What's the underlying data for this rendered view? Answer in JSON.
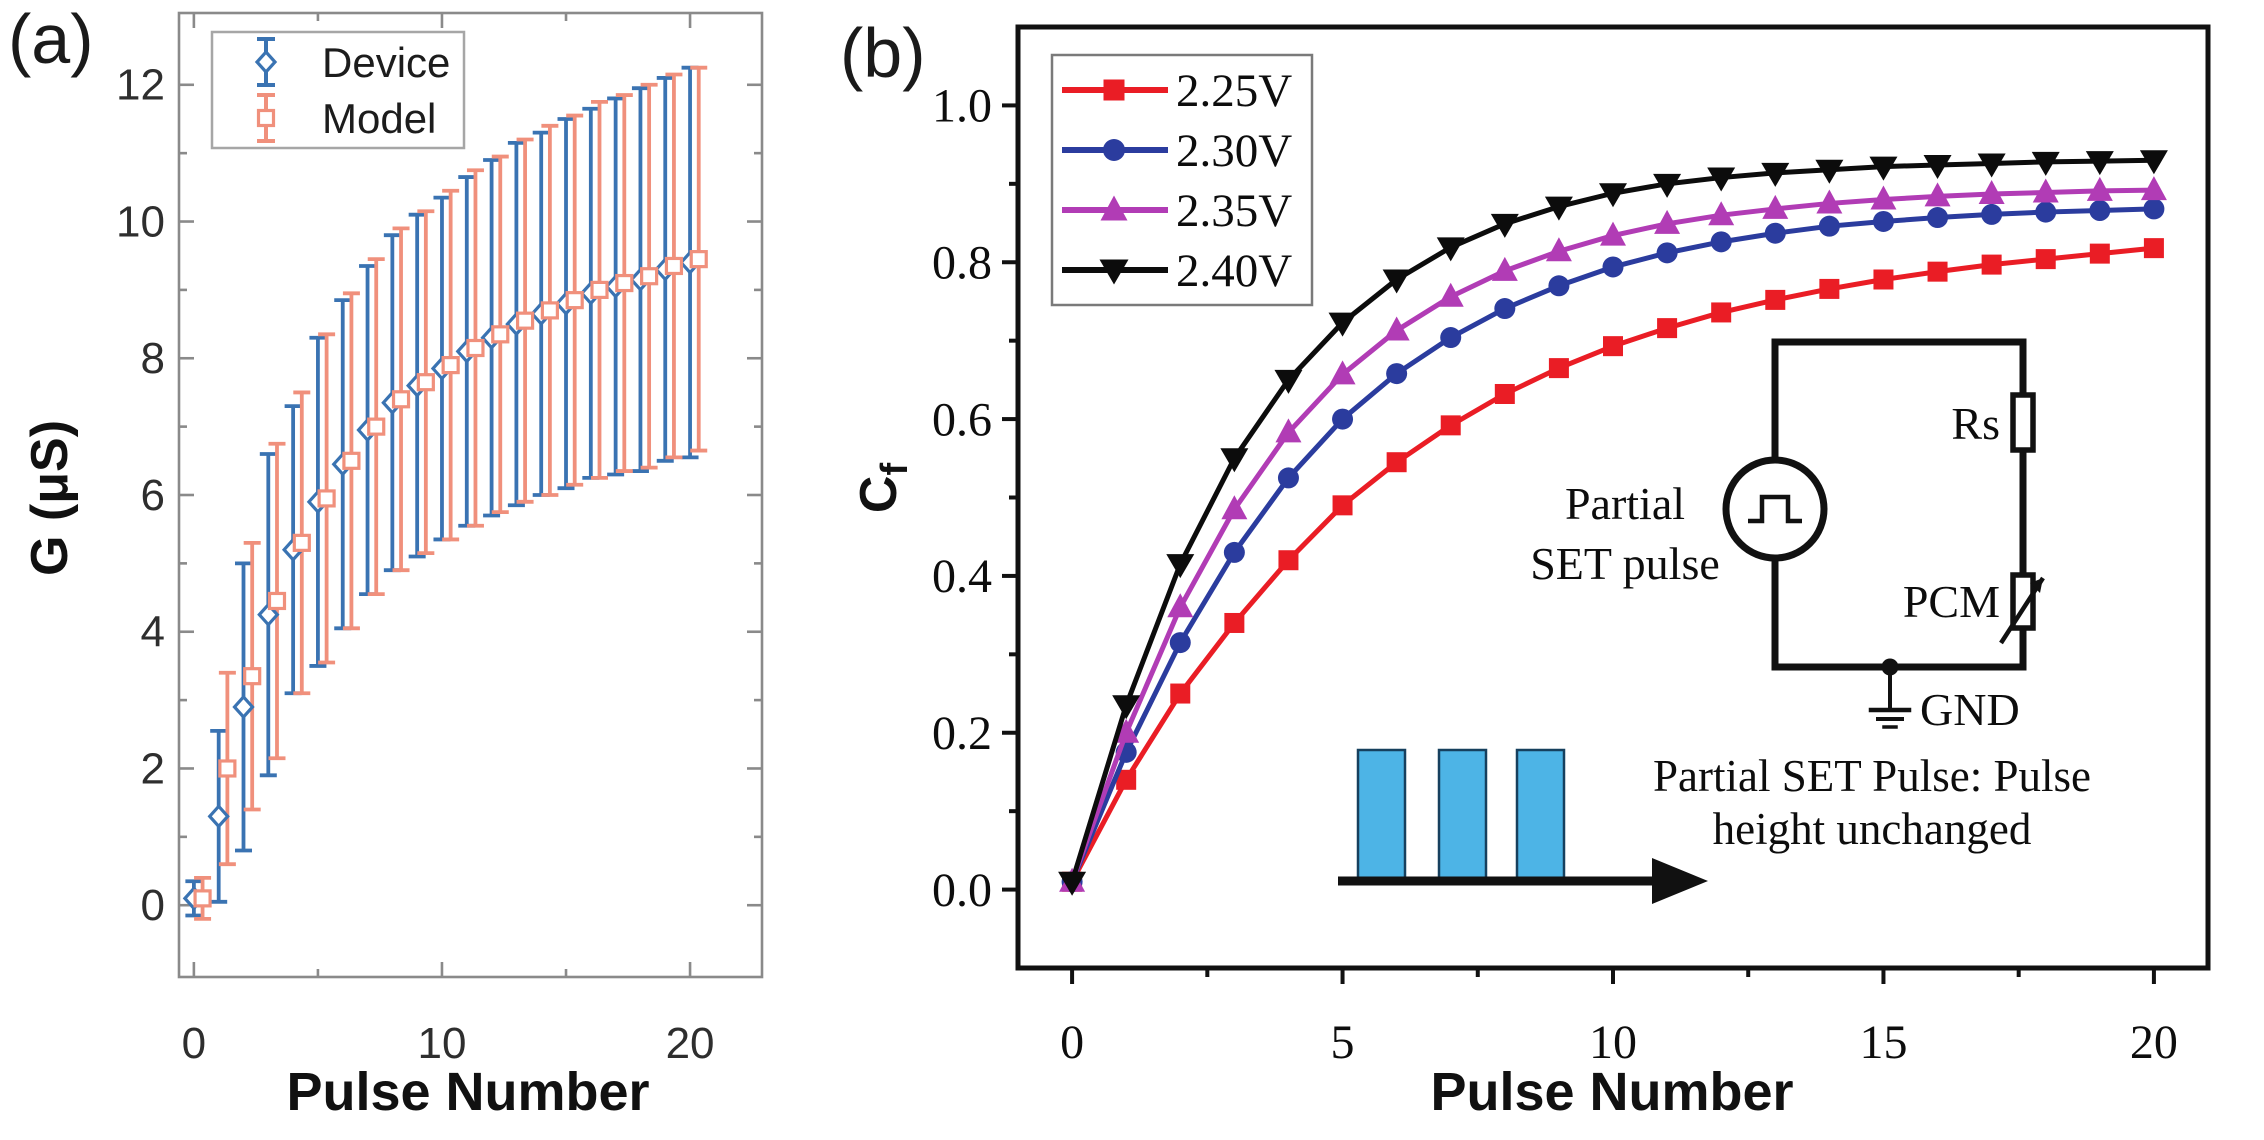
{
  "panel_a": {
    "label": "(a)",
    "xlabel": "Pulse Number",
    "ylabel": "G (μS)"
  },
  "panel_b": {
    "label": "(b)",
    "xlabel": "Pulse Number",
    "ylabel_main": "C",
    "ylabel_sub": "f",
    "inset_circuit": {
      "source_label_line1": "Partial",
      "source_label_line2": "SET pulse",
      "resistor_label": "Rs",
      "pcm_label": "PCM",
      "ground_label": "GND"
    },
    "pulse_note": {
      "line1": "Partial SET Pulse: Pulse",
      "line2": "height unchanged",
      "bar_color": "#4db4e6",
      "bar_edge_color": "#16405e",
      "arrow_color": "#111111"
    }
  },
  "chart_data": [
    {
      "type": "line",
      "panel": "a",
      "title": "",
      "xlabel": "Pulse Number",
      "ylabel": "G (μS)",
      "xlim": [
        -0.6,
        22.9
      ],
      "ylim": [
        -1.05,
        13.05
      ],
      "xticks": [
        0,
        10,
        20
      ],
      "xtick_labels": [
        "0",
        "10",
        "20"
      ],
      "xticks_minor": [
        5,
        15
      ],
      "yticks": [
        0,
        2,
        4,
        6,
        8,
        10,
        12
      ],
      "ytick_labels": [
        "0",
        "2",
        "4",
        "6",
        "8",
        "10",
        "12"
      ],
      "yticks_minor": [
        1,
        3,
        5,
        7,
        9,
        11
      ],
      "grid": false,
      "legend_position": "upper-left",
      "axis_color": "#8a8a8a",
      "x": [
        0,
        1,
        2,
        3,
        4,
        5,
        6,
        7,
        8,
        9,
        10,
        11,
        12,
        13,
        14,
        15,
        16,
        17,
        18,
        19,
        20
      ],
      "series": [
        {
          "name": "Device",
          "marker": "diamond",
          "color": "#3a73b2",
          "x_offset": 0,
          "values": [
            0.1,
            1.3,
            2.9,
            4.25,
            5.2,
            5.9,
            6.45,
            6.95,
            7.35,
            7.6,
            7.85,
            8.1,
            8.3,
            8.5,
            8.65,
            8.8,
            8.95,
            9.05,
            9.15,
            9.3,
            9.4
          ],
          "errors": [
            0.25,
            1.25,
            2.1,
            2.35,
            2.1,
            2.4,
            2.4,
            2.4,
            2.45,
            2.5,
            2.5,
            2.55,
            2.6,
            2.65,
            2.65,
            2.7,
            2.7,
            2.75,
            2.8,
            2.8,
            2.85
          ]
        },
        {
          "name": "Model",
          "marker": "square",
          "color": "#f0907c",
          "x_offset": 0.35,
          "values": [
            0.1,
            2.0,
            3.35,
            4.45,
            5.3,
            5.95,
            6.5,
            7.0,
            7.4,
            7.65,
            7.9,
            8.15,
            8.35,
            8.55,
            8.7,
            8.85,
            9.0,
            9.1,
            9.2,
            9.35,
            9.45
          ],
          "errors": [
            0.3,
            1.4,
            1.95,
            2.3,
            2.2,
            2.4,
            2.45,
            2.45,
            2.5,
            2.5,
            2.55,
            2.6,
            2.6,
            2.65,
            2.7,
            2.7,
            2.75,
            2.75,
            2.8,
            2.8,
            2.8
          ]
        }
      ]
    },
    {
      "type": "line",
      "panel": "b",
      "title": "",
      "xlabel": "Pulse Number",
      "ylabel": "Cf",
      "xlim": [
        -1,
        21
      ],
      "ylim": [
        -0.1,
        1.1
      ],
      "xticks": [
        0,
        5,
        10,
        15,
        20
      ],
      "xtick_labels": [
        "0",
        "5",
        "10",
        "15",
        "20"
      ],
      "xticks_minor": [
        2.5,
        7.5,
        12.5,
        17.5
      ],
      "yticks": [
        0.0,
        0.2,
        0.4,
        0.6,
        0.8,
        1.0
      ],
      "ytick_labels": [
        "0.0",
        "0.2",
        "0.4",
        "0.6",
        "0.8",
        "1.0"
      ],
      "yticks_minor": [
        0.1,
        0.3,
        0.5,
        0.7,
        0.9
      ],
      "grid": false,
      "legend_position": "upper-left",
      "axis_color": "#111111",
      "x": [
        0,
        1,
        2,
        3,
        4,
        5,
        6,
        7,
        8,
        9,
        10,
        11,
        12,
        13,
        14,
        15,
        16,
        17,
        18,
        19,
        20
      ],
      "series": [
        {
          "name": "2.25V",
          "marker": "square",
          "color": "#ea1d25",
          "values": [
            0.01,
            0.14,
            0.25,
            0.34,
            0.42,
            0.49,
            0.545,
            0.592,
            0.632,
            0.665,
            0.693,
            0.716,
            0.736,
            0.752,
            0.766,
            0.778,
            0.788,
            0.797,
            0.804,
            0.811,
            0.818
          ]
        },
        {
          "name": "2.30V",
          "marker": "circle",
          "color": "#2b3c9e",
          "values": [
            0.01,
            0.175,
            0.315,
            0.43,
            0.525,
            0.6,
            0.658,
            0.704,
            0.741,
            0.77,
            0.794,
            0.812,
            0.826,
            0.837,
            0.846,
            0.852,
            0.857,
            0.861,
            0.864,
            0.866,
            0.868
          ]
        },
        {
          "name": "2.35V",
          "marker": "triangle-up",
          "color": "#b13cb5",
          "values": [
            0.01,
            0.2,
            0.36,
            0.485,
            0.583,
            0.657,
            0.713,
            0.756,
            0.789,
            0.814,
            0.834,
            0.849,
            0.86,
            0.868,
            0.875,
            0.88,
            0.884,
            0.887,
            0.889,
            0.891,
            0.892
          ]
        },
        {
          "name": "2.40V",
          "marker": "triangle-down",
          "color": "#0c0c0c",
          "values": [
            0.01,
            0.235,
            0.415,
            0.55,
            0.65,
            0.723,
            0.778,
            0.819,
            0.849,
            0.871,
            0.888,
            0.9,
            0.908,
            0.914,
            0.918,
            0.922,
            0.924,
            0.926,
            0.928,
            0.929,
            0.93
          ]
        }
      ]
    }
  ]
}
